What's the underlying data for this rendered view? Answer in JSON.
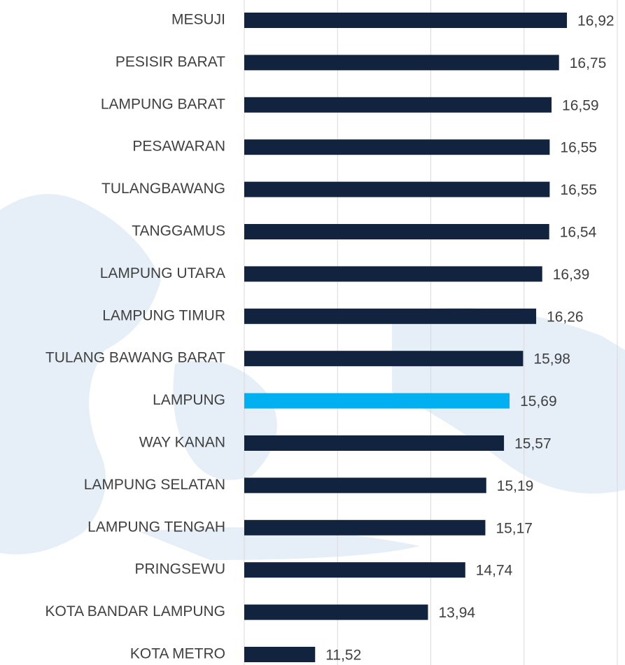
{
  "chart_data": {
    "type": "barh",
    "categories": [
      "MESUJI",
      "PESISIR BARAT",
      "LAMPUNG BARAT",
      "PESAWARAN",
      "TULANGBAWANG",
      "TANGGAMUS",
      "LAMPUNG UTARA",
      "LAMPUNG TIMUR",
      "TULANG BAWANG BARAT",
      "LAMPUNG",
      "WAY KANAN",
      "LAMPUNG SELATAN",
      "LAMPUNG TENGAH",
      "PRINGSEWU",
      "KOTA BANDAR LAMPUNG",
      "KOTA METRO"
    ],
    "values": [
      16.92,
      16.75,
      16.59,
      16.55,
      16.55,
      16.54,
      16.39,
      16.26,
      15.98,
      15.69,
      15.57,
      15.19,
      15.17,
      14.74,
      13.94,
      11.52
    ],
    "value_labels": [
      "16,92",
      "16,75",
      "16,59",
      "16,55",
      "16,55",
      "16,54",
      "16,39",
      "16,26",
      "15,98",
      "15,69",
      "15,57",
      "15,19",
      "15,17",
      "14,74",
      "13,94",
      "11,52"
    ],
    "colors": [
      "#12233f",
      "#12233f",
      "#12233f",
      "#12233f",
      "#12233f",
      "#12233f",
      "#12233f",
      "#12233f",
      "#12233f",
      "#00b0f0",
      "#12233f",
      "#12233f",
      "#12233f",
      "#12233f",
      "#12233f",
      "#12233f"
    ],
    "xlim": [
      10,
      18
    ],
    "xticks": [
      10,
      12,
      14,
      16,
      18
    ],
    "grid": true
  }
}
